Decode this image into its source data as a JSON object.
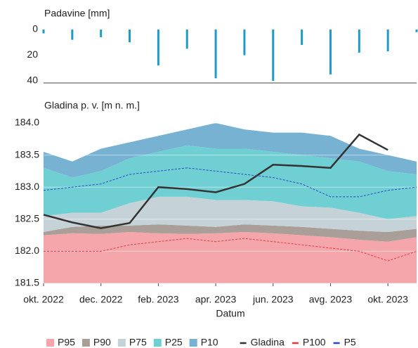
{
  "chart_data": [
    {
      "type": "bar",
      "title": "Padavine [mm]",
      "x": [
        "2022-10",
        "2022-11",
        "2022-12",
        "2023-01",
        "2023-02",
        "2023-03",
        "2023-04",
        "2023-05",
        "2023-06",
        "2023-07",
        "2023-08",
        "2023-09",
        "2023-10",
        "2023-11"
      ],
      "values": [
        3,
        8,
        6,
        10,
        28,
        15,
        38,
        20,
        40,
        12,
        35,
        18,
        17,
        2
      ],
      "color": "#1f9ac9",
      "ylim": [
        0,
        40
      ],
      "inverted": true,
      "yticks": [
        0,
        20,
        40
      ],
      "xlim": [
        "2022-10",
        "2023-11"
      ]
    },
    {
      "type": "area",
      "title": "Gladina p. v. [m n. m.]",
      "xlabel": "Datum",
      "x": [
        "2022-10",
        "2022-11",
        "2022-12",
        "2023-01",
        "2023-02",
        "2023-03",
        "2023-04",
        "2023-05",
        "2023-06",
        "2023-07",
        "2023-08",
        "2023-09",
        "2023-10",
        "2023-11"
      ],
      "xlim": [
        "2022-10",
        "2023-11"
      ],
      "xticks": [
        {
          "value": "2022-10",
          "label": "okt. 2022"
        },
        {
          "value": "2022-12",
          "label": "dec. 2022"
        },
        {
          "value": "2023-02",
          "label": "feb. 2023"
        },
        {
          "value": "2023-04",
          "label": "apr. 2023"
        },
        {
          "value": "2023-06",
          "label": "jun. 2023"
        },
        {
          "value": "2023-08",
          "label": "avg. 2023"
        },
        {
          "value": "2023-10",
          "label": "okt. 2023"
        }
      ],
      "ylim": [
        181.5,
        184
      ],
      "yticks": [
        181.5,
        {
          "value": 182,
          "label": "182.0"
        },
        182.5,
        {
          "value": 183,
          "label": "183.0"
        },
        183.5,
        {
          "value": 184,
          "label": "184.0"
        }
      ],
      "grid": true,
      "series": [
        {
          "name": "P95",
          "style": "area",
          "color": "#f4a6aa",
          "values": [
            182.25,
            182.28,
            182.27,
            182.3,
            182.28,
            182.27,
            182.28,
            182.3,
            182.28,
            182.25,
            182.22,
            182.18,
            182.15,
            182.22
          ]
        },
        {
          "name": "P90",
          "style": "area",
          "color": "#a99e98",
          "values": [
            182.3,
            182.38,
            182.4,
            182.4,
            182.42,
            182.4,
            182.38,
            182.42,
            182.4,
            182.38,
            182.35,
            182.32,
            182.3,
            182.35
          ]
        },
        {
          "name": "P75",
          "style": "area",
          "color": "#c5d2d8",
          "values": [
            182.55,
            182.6,
            182.6,
            182.75,
            182.85,
            182.85,
            182.8,
            182.8,
            182.78,
            182.7,
            182.68,
            182.6,
            182.5,
            182.55
          ]
        },
        {
          "name": "P25",
          "style": "area",
          "color": "#6fcfd3",
          "values": [
            183.3,
            183.15,
            183.25,
            183.45,
            183.55,
            183.65,
            183.6,
            183.6,
            183.55,
            183.5,
            183.45,
            183.4,
            183.25,
            183.2
          ]
        },
        {
          "name": "P10",
          "style": "area",
          "color": "#77b2d3",
          "values": [
            183.55,
            183.4,
            183.6,
            183.7,
            183.8,
            183.9,
            184.0,
            183.9,
            183.85,
            183.85,
            183.8,
            183.6,
            183.5,
            183.4
          ]
        },
        {
          "name": "Gladina",
          "style": "line",
          "color": "#333333",
          "values": [
            182.57,
            182.45,
            182.36,
            182.44,
            183.0,
            182.97,
            182.92,
            183.05,
            183.35,
            183.33,
            183.3,
            183.82,
            183.58,
            null
          ]
        },
        {
          "name": "P100",
          "style": "dashed",
          "color": "#e8383d",
          "values": [
            182.0,
            182.0,
            182.0,
            182.1,
            182.15,
            182.2,
            182.15,
            182.2,
            182.15,
            182.1,
            182.05,
            182.0,
            181.85,
            182.0
          ]
        },
        {
          "name": "P5",
          "style": "dashed",
          "color": "#2a45c8",
          "values": [
            182.95,
            183.0,
            183.05,
            183.2,
            183.25,
            183.3,
            183.25,
            183.2,
            183.15,
            183.05,
            182.85,
            182.85,
            182.95,
            183.0
          ]
        }
      ]
    }
  ]
}
